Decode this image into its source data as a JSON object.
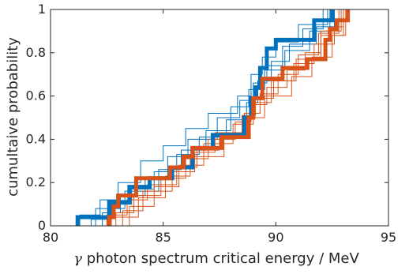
{
  "chart_data": {
    "type": "line",
    "subtype": "empirical-cdf-staircase",
    "xlabel_symbol": "γ",
    "xlabel_text": " photon spectrum critical energy / MeV",
    "ylabel": "cumultaive probability",
    "xlim": [
      80,
      95
    ],
    "ylim": [
      0,
      1
    ],
    "xticks": [
      80,
      85,
      90,
      95
    ],
    "yticks": [
      0,
      0.2,
      0.4,
      0.6,
      0.8,
      1
    ],
    "xtick_labels": [
      "80",
      "85",
      "90",
      "95"
    ],
    "ytick_labels": [
      "0",
      "0.2",
      "0.4",
      "0.6",
      "0.8",
      "1"
    ],
    "grid": false,
    "legend": "none",
    "colors": {
      "blue": "#0072BD",
      "orange": "#D95319",
      "axis": "#262626"
    },
    "series": [
      {
        "color": "#0072BD",
        "emphasis": "bold",
        "x": [
          81.2,
          82.6,
          83.5,
          84.4,
          85.4,
          86.3,
          87.2,
          88.6,
          88.9,
          89.1,
          89.3,
          89.6,
          90.0,
          91.7,
          92.5
        ],
        "y": [
          0.04,
          0.11,
          0.18,
          0.22,
          0.27,
          0.36,
          0.42,
          0.5,
          0.59,
          0.64,
          0.73,
          0.82,
          0.86,
          0.95,
          1.0
        ]
      },
      {
        "color": "#D95319",
        "emphasis": "bold",
        "x": [
          82.6,
          82.8,
          83.0,
          83.8,
          85.3,
          85.9,
          86.3,
          87.6,
          88.8,
          89.0,
          89.4,
          90.3,
          91.4,
          92.2,
          92.4,
          92.7,
          93.2
        ],
        "y": [
          0.04,
          0.09,
          0.14,
          0.22,
          0.27,
          0.32,
          0.36,
          0.41,
          0.5,
          0.59,
          0.68,
          0.73,
          0.77,
          0.86,
          0.91,
          0.95,
          1.0
        ]
      },
      {
        "color": "#0072BD",
        "emphasis": "thin",
        "x": [
          81.3,
          82.2,
          83.0,
          84.0,
          85.0,
          86.0,
          87.0,
          88.3,
          88.9,
          89.4,
          90.0,
          91.0,
          92.3
        ],
        "y": [
          0.05,
          0.12,
          0.2,
          0.3,
          0.37,
          0.45,
          0.52,
          0.6,
          0.7,
          0.78,
          0.85,
          0.93,
          1.0
        ]
      },
      {
        "color": "#0072BD",
        "emphasis": "thin",
        "x": [
          81.8,
          82.7,
          83.6,
          84.6,
          85.6,
          86.6,
          87.8,
          88.7,
          89.2,
          89.8,
          90.6,
          91.8,
          92.6
        ],
        "y": [
          0.03,
          0.1,
          0.17,
          0.25,
          0.33,
          0.41,
          0.49,
          0.57,
          0.67,
          0.76,
          0.84,
          0.92,
          1.0
        ]
      },
      {
        "color": "#0072BD",
        "emphasis": "thin",
        "x": [
          82.3,
          83.1,
          84.2,
          85.2,
          86.1,
          87.4,
          88.4,
          89.0,
          89.6,
          90.3,
          91.2,
          92.1
        ],
        "y": [
          0.06,
          0.14,
          0.22,
          0.32,
          0.4,
          0.5,
          0.58,
          0.66,
          0.74,
          0.83,
          0.91,
          1.0
        ]
      },
      {
        "color": "#0072BD",
        "emphasis": "thin",
        "x": [
          82.0,
          83.3,
          84.8,
          85.8,
          86.9,
          88.0,
          88.8,
          89.5,
          90.4,
          91.5,
          92.4
        ],
        "y": [
          0.08,
          0.16,
          0.26,
          0.35,
          0.44,
          0.55,
          0.63,
          0.72,
          0.81,
          0.9,
          1.0
        ]
      },
      {
        "color": "#D95319",
        "emphasis": "thin",
        "x": [
          82.5,
          83.4,
          84.3,
          85.6,
          86.5,
          87.5,
          88.5,
          89.1,
          89.9,
          90.8,
          91.7,
          92.6,
          93.0
        ],
        "y": [
          0.05,
          0.12,
          0.19,
          0.27,
          0.35,
          0.43,
          0.51,
          0.59,
          0.67,
          0.75,
          0.84,
          0.92,
          1.0
        ]
      },
      {
        "color": "#D95319",
        "emphasis": "thin",
        "x": [
          82.9,
          83.7,
          84.9,
          86.0,
          87.0,
          88.2,
          88.9,
          89.6,
          90.5,
          91.3,
          92.0,
          92.9
        ],
        "y": [
          0.06,
          0.14,
          0.22,
          0.31,
          0.4,
          0.48,
          0.56,
          0.64,
          0.72,
          0.8,
          0.9,
          1.0
        ]
      },
      {
        "color": "#D95319",
        "emphasis": "thin",
        "x": [
          83.2,
          84.1,
          85.4,
          86.4,
          87.3,
          88.6,
          89.3,
          90.1,
          91.0,
          91.9,
          92.8
        ],
        "y": [
          0.07,
          0.16,
          0.25,
          0.34,
          0.43,
          0.52,
          0.61,
          0.7,
          0.79,
          0.89,
          1.0
        ]
      },
      {
        "color": "#D95319",
        "emphasis": "thin",
        "x": [
          82.7,
          83.9,
          85.1,
          86.2,
          87.7,
          88.7,
          89.5,
          90.7,
          91.6,
          92.5,
          93.1
        ],
        "y": [
          0.04,
          0.13,
          0.23,
          0.32,
          0.42,
          0.5,
          0.6,
          0.69,
          0.78,
          0.88,
          1.0
        ]
      },
      {
        "color": "#D95319",
        "emphasis": "thin",
        "x": [
          83.5,
          84.6,
          85.7,
          86.8,
          88.1,
          89.0,
          89.8,
          90.9,
          92.0,
          93.0
        ],
        "y": [
          0.09,
          0.18,
          0.28,
          0.38,
          0.47,
          0.57,
          0.67,
          0.77,
          0.88,
          1.0
        ]
      }
    ]
  }
}
